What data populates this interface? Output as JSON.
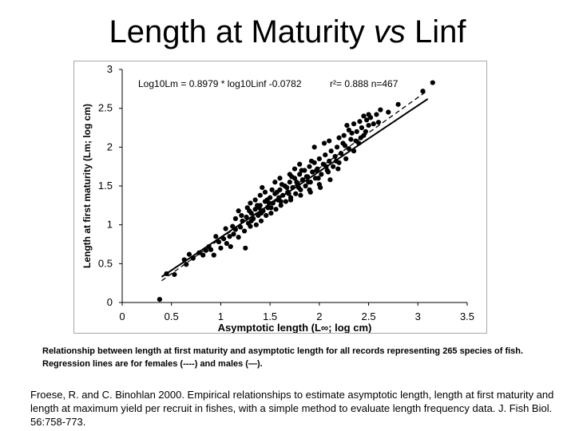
{
  "slide": {
    "title_prefix": "Length at Maturity ",
    "title_italic": "vs",
    "title_suffix": " Linf"
  },
  "chart_data": {
    "type": "scatter",
    "xlabel": "Asymptotic length (L∞; log cm)",
    "ylabel": "Length at first maturity (Lm; log cm)",
    "xlim": [
      0,
      3.5
    ],
    "ylim": [
      0,
      3
    ],
    "x_ticks": [
      "0",
      "0.5",
      "1",
      "1.5",
      "2",
      "2.5",
      "3",
      "3.5"
    ],
    "y_ticks": [
      "0",
      "0.5",
      "1",
      "1.5",
      "2",
      "2.5",
      "3"
    ],
    "grid": false,
    "equation": "Log10Lm = 0.8979 * log10Linf -0.0782",
    "stats": "r²= 0.888  n=467",
    "regression": [
      {
        "name": "females",
        "style": "dashed",
        "x": [
          0.4,
          3.1
        ],
        "y": [
          0.28,
          2.73
        ]
      },
      {
        "name": "males",
        "style": "solid",
        "x": [
          0.4,
          3.1
        ],
        "y": [
          0.33,
          2.62
        ]
      }
    ],
    "series": [
      {
        "name": "records",
        "points": [
          [
            0.38,
            0.04
          ],
          [
            0.45,
            0.37
          ],
          [
            0.53,
            0.36
          ],
          [
            0.63,
            0.55
          ],
          [
            0.65,
            0.49
          ],
          [
            0.68,
            0.62
          ],
          [
            0.72,
            0.57
          ],
          [
            0.82,
            0.61
          ],
          [
            0.85,
            0.67
          ],
          [
            0.9,
            0.68
          ],
          [
            0.93,
            0.61
          ],
          [
            0.98,
            0.78
          ],
          [
            1.0,
            0.7
          ],
          [
            1.03,
            0.82
          ],
          [
            1.06,
            0.76
          ],
          [
            1.09,
            0.85
          ],
          [
            1.1,
            0.72
          ],
          [
            1.13,
            0.88
          ],
          [
            1.15,
            0.94
          ],
          [
            1.18,
            0.84
          ],
          [
            1.2,
            0.97
          ],
          [
            1.22,
            1.05
          ],
          [
            1.24,
            0.92
          ],
          [
            1.26,
            1.1
          ],
          [
            1.28,
            1.02
          ],
          [
            1.3,
            0.98
          ],
          [
            1.31,
            1.15
          ],
          [
            1.33,
            1.08
          ],
          [
            1.35,
            1.2
          ],
          [
            1.36,
            1.0
          ],
          [
            1.38,
            1.12
          ],
          [
            1.4,
            1.25
          ],
          [
            1.41,
            1.05
          ],
          [
            1.43,
            1.18
          ],
          [
            1.45,
            1.3
          ],
          [
            1.46,
            1.12
          ],
          [
            1.48,
            1.22
          ],
          [
            1.5,
            1.35
          ],
          [
            1.51,
            1.15
          ],
          [
            1.53,
            1.28
          ],
          [
            1.55,
            1.4
          ],
          [
            1.56,
            1.2
          ],
          [
            1.58,
            1.32
          ],
          [
            1.6,
            1.45
          ],
          [
            1.61,
            1.25
          ],
          [
            1.63,
            1.38
          ],
          [
            1.65,
            1.5
          ],
          [
            1.66,
            1.3
          ],
          [
            1.68,
            1.42
          ],
          [
            1.7,
            1.55
          ],
          [
            1.71,
            1.35
          ],
          [
            1.73,
            1.48
          ],
          [
            1.75,
            1.6
          ],
          [
            1.76,
            1.4
          ],
          [
            1.78,
            1.52
          ],
          [
            1.8,
            1.65
          ],
          [
            1.81,
            1.45
          ],
          [
            1.83,
            1.58
          ],
          [
            1.85,
            1.7
          ],
          [
            1.86,
            1.5
          ],
          [
            1.88,
            1.62
          ],
          [
            1.9,
            1.75
          ],
          [
            1.91,
            1.55
          ],
          [
            1.93,
            1.68
          ],
          [
            1.95,
            1.8
          ],
          [
            1.96,
            1.6
          ],
          [
            1.98,
            1.72
          ],
          [
            2.0,
            1.85
          ],
          [
            2.02,
            1.65
          ],
          [
            2.04,
            1.78
          ],
          [
            2.06,
            1.9
          ],
          [
            2.08,
            1.7
          ],
          [
            2.1,
            1.82
          ],
          [
            2.12,
            1.95
          ],
          [
            2.14,
            1.75
          ],
          [
            2.16,
            1.88
          ],
          [
            2.18,
            2.0
          ],
          [
            2.2,
            1.8
          ],
          [
            2.22,
            1.92
          ],
          [
            2.24,
            2.05
          ],
          [
            2.27,
            1.85
          ],
          [
            2.3,
            1.98
          ],
          [
            2.32,
            2.1
          ],
          [
            2.35,
            1.95
          ],
          [
            2.38,
            2.2
          ],
          [
            2.4,
            2.05
          ],
          [
            2.43,
            2.25
          ],
          [
            2.45,
            2.15
          ],
          [
            2.48,
            2.35
          ],
          [
            2.5,
            2.28
          ],
          [
            2.2,
            2.12
          ],
          [
            2.25,
            2.15
          ],
          [
            2.1,
            2.08
          ],
          [
            1.95,
            2.0
          ],
          [
            2.05,
            2.05
          ],
          [
            1.25,
            0.7
          ],
          [
            1.45,
            1.42
          ],
          [
            1.55,
            1.55
          ],
          [
            1.7,
            1.65
          ],
          [
            1.3,
            1.28
          ],
          [
            1.35,
            1.32
          ],
          [
            1.6,
            1.6
          ],
          [
            1.9,
            1.45
          ],
          [
            2.0,
            1.52
          ],
          [
            1.15,
            1.08
          ],
          [
            1.05,
            0.95
          ],
          [
            0.95,
            0.85
          ],
          [
            1.4,
            1.38
          ],
          [
            1.8,
            1.78
          ],
          [
            1.75,
            1.72
          ],
          [
            2.6,
            2.32
          ],
          [
            2.55,
            2.3
          ],
          [
            2.45,
            2.4
          ],
          [
            2.35,
            2.3
          ],
          [
            3.15,
            2.83
          ],
          [
            3.05,
            2.72
          ],
          [
            2.8,
            2.55
          ],
          [
            2.7,
            2.45
          ],
          [
            2.5,
            2.42
          ],
          [
            2.3,
            2.22
          ],
          [
            1.42,
            1.48
          ],
          [
            1.52,
            1.45
          ],
          [
            1.62,
            1.52
          ],
          [
            1.72,
            1.62
          ],
          [
            1.82,
            1.7
          ],
          [
            1.92,
            1.82
          ],
          [
            1.37,
            1.25
          ],
          [
            1.47,
            1.32
          ],
          [
            1.57,
            1.42
          ],
          [
            1.67,
            1.48
          ],
          [
            1.77,
            1.55
          ],
          [
            1.87,
            1.62
          ],
          [
            1.97,
            1.7
          ],
          [
            2.07,
            1.75
          ],
          [
            2.17,
            1.82
          ],
          [
            1.29,
            1.18
          ],
          [
            1.39,
            1.22
          ],
          [
            1.49,
            1.28
          ],
          [
            1.59,
            1.35
          ],
          [
            1.69,
            1.4
          ],
          [
            1.79,
            1.48
          ],
          [
            1.89,
            1.55
          ],
          [
            1.99,
            1.6
          ],
          [
            2.09,
            1.68
          ],
          [
            2.19,
            1.72
          ],
          [
            1.21,
            1.12
          ],
          [
            1.31,
            1.05
          ],
          [
            1.41,
            1.15
          ],
          [
            1.51,
            1.22
          ],
          [
            1.61,
            1.3
          ],
          [
            1.71,
            1.32
          ],
          [
            1.81,
            1.38
          ],
          [
            1.91,
            1.42
          ],
          [
            2.01,
            1.48
          ],
          [
            2.11,
            1.58
          ],
          [
            0.88,
            0.72
          ],
          [
            0.78,
            0.64
          ],
          [
            1.12,
            0.98
          ],
          [
            1.18,
            1.18
          ],
          [
            1.27,
            1.22
          ],
          [
            2.28,
            2.28
          ],
          [
            2.33,
            2.18
          ],
          [
            2.37,
            2.08
          ],
          [
            2.42,
            2.12
          ],
          [
            2.47,
            2.2
          ],
          [
            2.52,
            2.38
          ],
          [
            2.58,
            2.42
          ],
          [
            2.62,
            2.48
          ],
          [
            2.41,
            2.33
          ],
          [
            2.26,
            2.02
          ]
        ]
      }
    ]
  },
  "caption": "Relationship between length at first maturity and asymptotic length for all records  representing 265 species of fish. Regression lines are for females (----) and males (—).",
  "citation": "Froese, R. and C. Binohlan 2000. Empirical relationships to estimate asymptotic length, length at first maturity and length at maximum yield per recruit in fishes, with a simple method to evaluate length frequency data. J. Fish Biol. 56:758-773."
}
